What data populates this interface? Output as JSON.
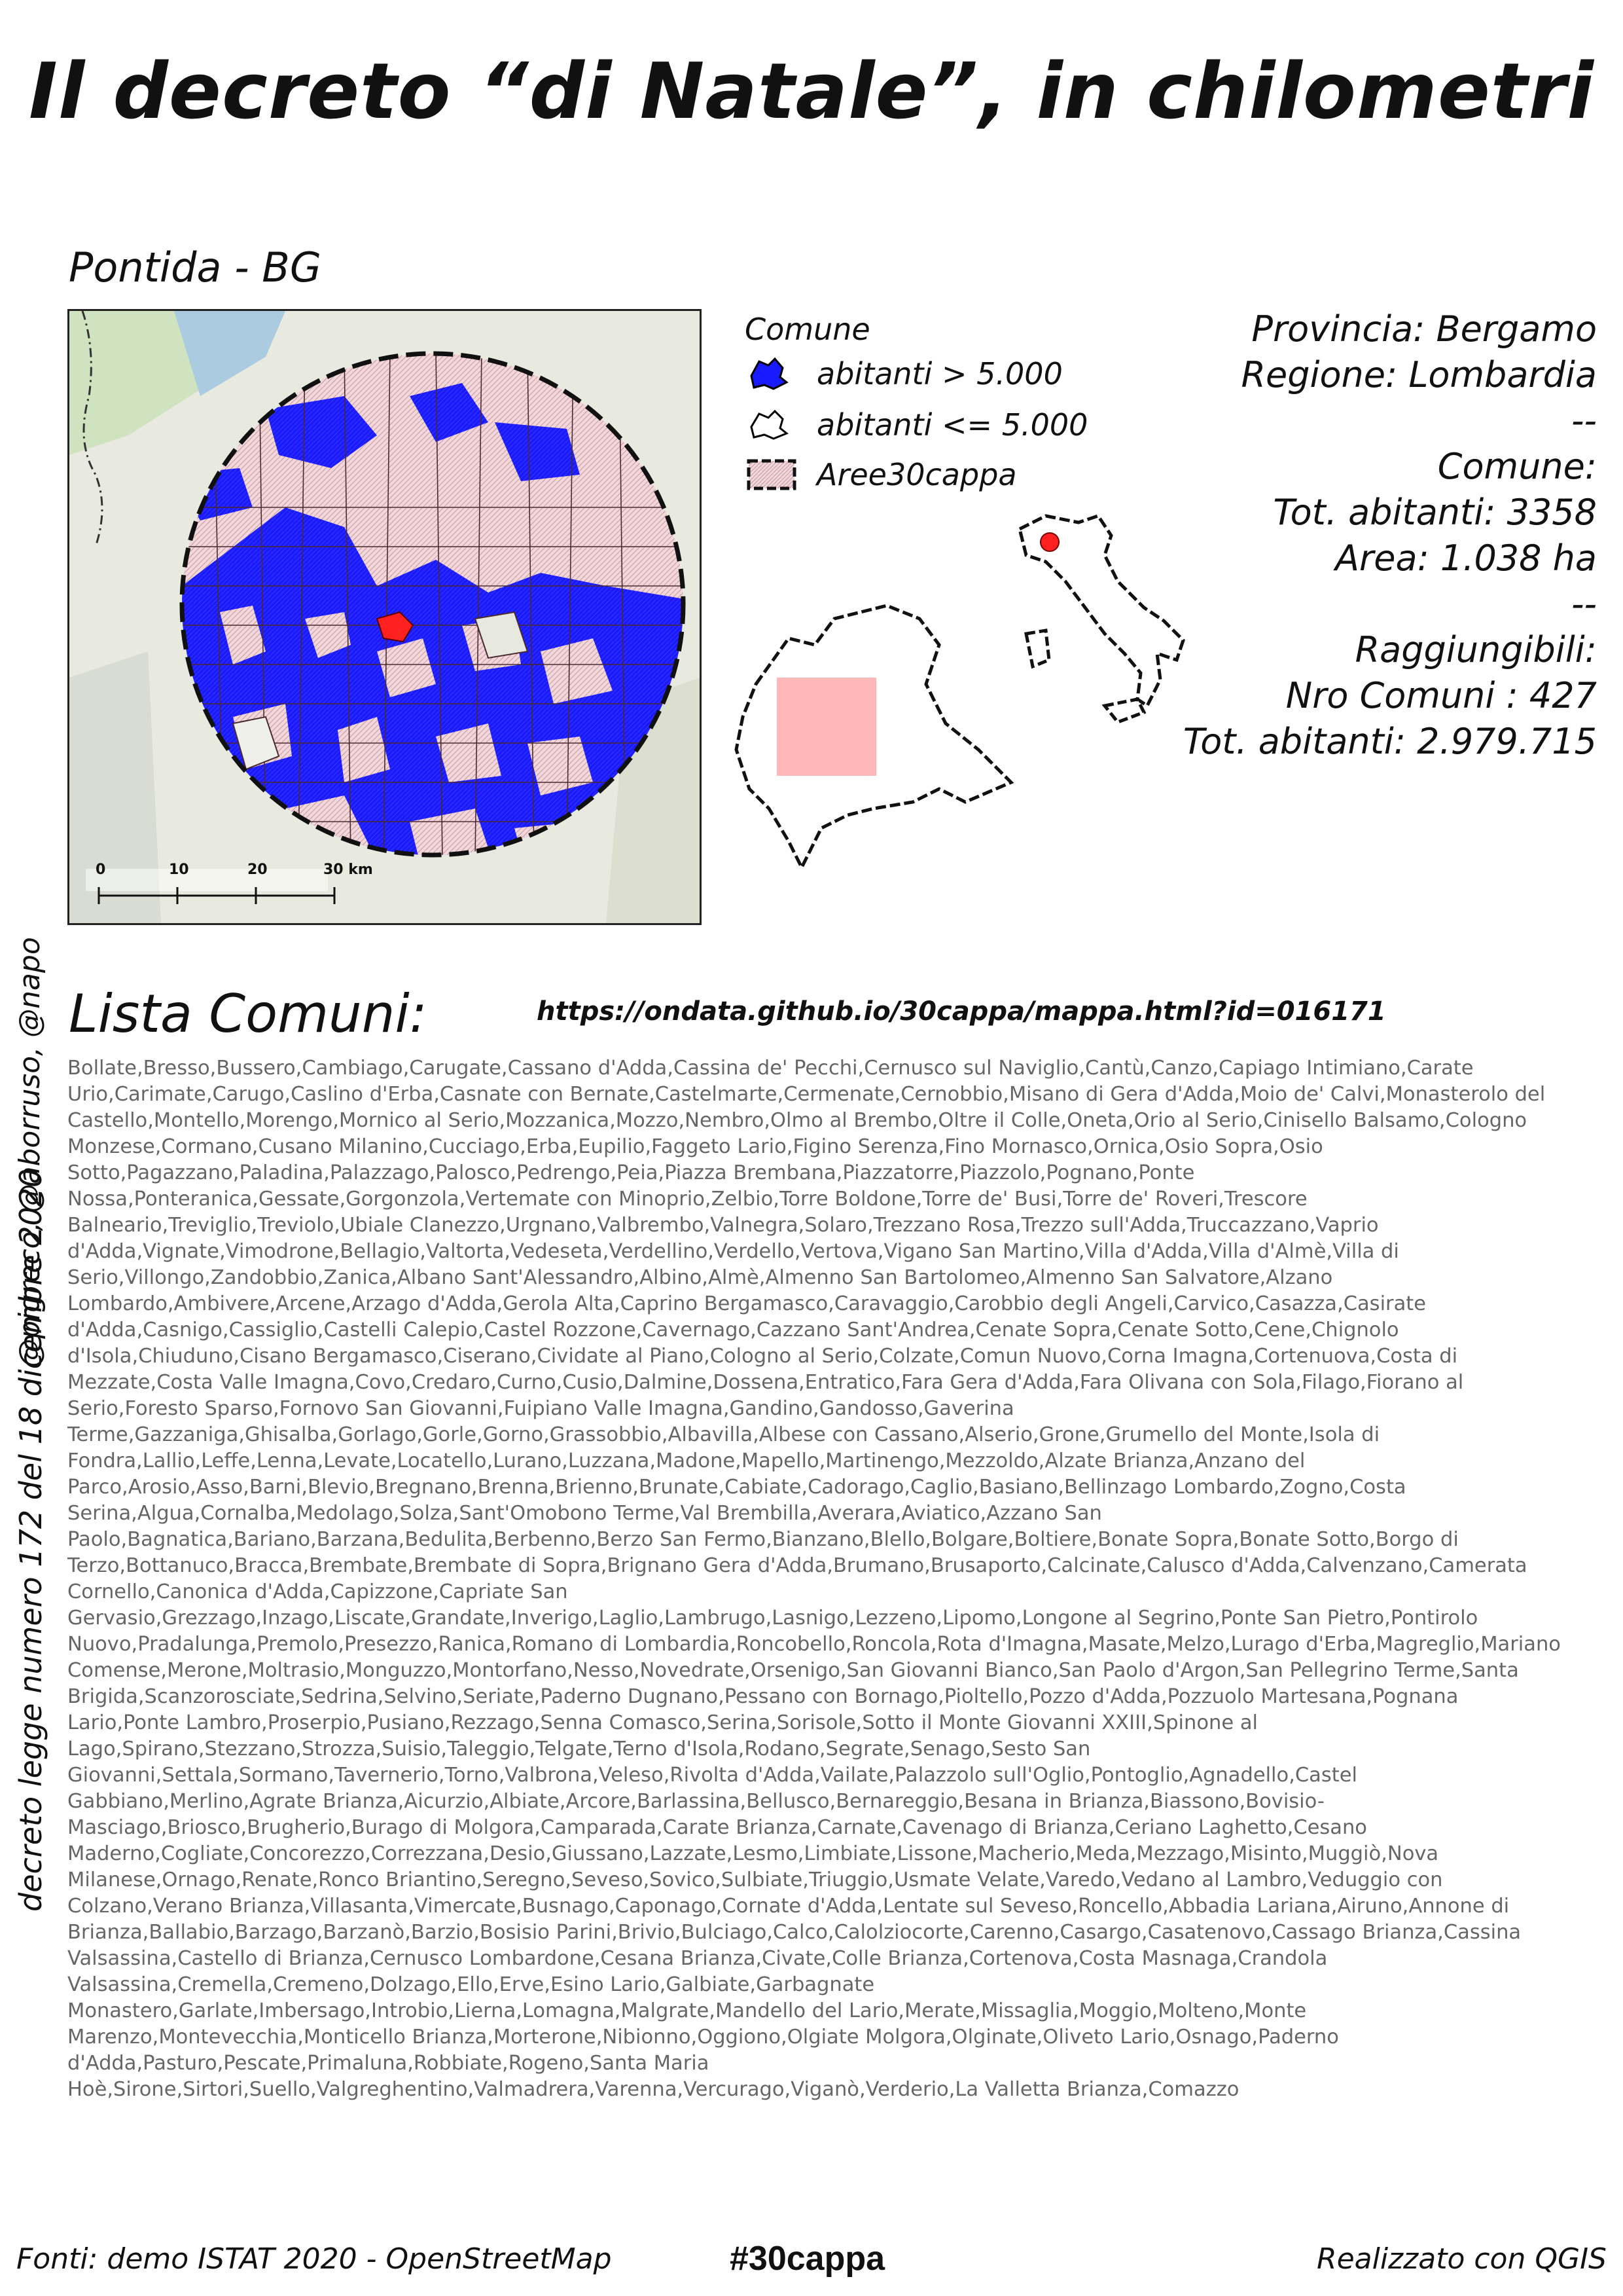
{
  "title": "Il decreto “di Natale”, in chilometri",
  "place_title": "Pontida - BG",
  "credits": "@pigreco, @aborruso, @napo",
  "map": {
    "scale_labels": [
      "0",
      "10",
      "20",
      "30 km"
    ],
    "colors": {
      "large_comune": "#1a1aff",
      "small_comune": "#f1d3d6",
      "selected_comune": "#ff2020",
      "buffer_fill": "#ffb6b9",
      "region_box": "#ffb8b9"
    }
  },
  "legend": {
    "title": "Comune",
    "items": [
      {
        "label": "abitanti > 5.000"
      },
      {
        "label": "abitanti <= 5.000"
      },
      {
        "label": "Aree30cappa"
      }
    ]
  },
  "info": {
    "provincia": "Provincia: Bergamo",
    "regione": "Regione: Lombardia",
    "sep1": "--",
    "comune_label": "Comune:",
    "tot_abitanti": "Tot. abitanti: 3358",
    "area": "Area: 1.038 ha",
    "sep2": "--",
    "raggiungibili_label": "Raggiungibili:",
    "nro_comuni": "Nro Comuni : 427",
    "tot_abitanti_raggiungibili": "Tot. abitanti: 2.979.715"
  },
  "list_title": "Lista Comuni:",
  "url": "https://ondata.github.io/30cappa/mappa.html?id=016171",
  "law": "decreto legge numero 172 del 18 dicembre 2020",
  "comuni_text": "Bollate,Bresso,Bussero,Cambiago,Carugate,Cassano d'Adda,Cassina de' Pecchi,Cernusco sul Naviglio,Cantù,Canzo,Capiago Intimiano,Carate Urio,Carimate,Carugo,Caslino d'Erba,Casnate con Bernate,Castelmarte,Cermenate,Cernobbio,Misano di Gera d'Adda,Moio de' Calvi,Monasterolo del Castello,Montello,Morengo,Mornico al Serio,Mozzanica,Mozzo,Nembro,Olmo al Brembo,Oltre il Colle,Oneta,Orio al Serio,Cinisello Balsamo,Cologno Monzese,Cormano,Cusano Milanino,Cucciago,Erba,Eupilio,Faggeto Lario,Figino Serenza,Fino Mornasco,Ornica,Osio Sopra,Osio Sotto,Pagazzano,Paladina,Palazzago,Palosco,Pedrengo,Peia,Piazza Brembana,Piazzatorre,Piazzolo,Pognano,Ponte Nossa,Ponteranica,Gessate,Gorgonzola,Vertemate con Minoprio,Zelbio,Torre Boldone,Torre de' Busi,Torre de' Roveri,Trescore Balneario,Treviglio,Treviolo,Ubiale Clanezzo,Urgnano,Valbrembo,Valnegra,Solaro,Trezzano Rosa,Trezzo sull'Adda,Truccazzano,Vaprio d'Adda,Vignate,Vimodrone,Bellagio,Valtorta,Vedeseta,Verdellino,Verdello,Vertova,Vigano San Martino,Villa d'Adda,Villa d'Almè,Villa di Serio,Villongo,Zandobbio,Zanica,Albano Sant'Alessandro,Albino,Almè,Almenno San Bartolomeo,Almenno San Salvatore,Alzano Lombardo,Ambivere,Arcene,Arzago d'Adda,Gerola Alta,Caprino Bergamasco,Caravaggio,Carobbio degli Angeli,Carvico,Casazza,Casirate d'Adda,Casnigo,Cassiglio,Castelli Calepio,Castel Rozzone,Cavernago,Cazzano Sant'Andrea,Cenate Sopra,Cenate Sotto,Cene,Chignolo d'Isola,Chiuduno,Cisano Bergamasco,Ciserano,Cividate al Piano,Cologno al Serio,Colzate,Comun Nuovo,Corna Imagna,Cortenuova,Costa di Mezzate,Costa Valle Imagna,Covo,Credaro,Curno,Cusio,Dalmine,Dossena,Entratico,Fara Gera d'Adda,Fara Olivana con Sola,Filago,Fiorano al Serio,Foresto Sparso,Fornovo San Giovanni,Fuipiano Valle Imagna,Gandino,Gandosso,Gaverina Terme,Gazzaniga,Ghisalba,Gorlago,Gorle,Gorno,Grassobbio,Albavilla,Albese con Cassano,Alserio,Grone,Grumello del Monte,Isola di Fondra,Lallio,Leffe,Lenna,Levate,Locatello,Lurano,Luzzana,Madone,Mapello,Martinengo,Mezzoldo,Alzate Brianza,Anzano del Parco,Arosio,Asso,Barni,Blevio,Bregnano,Brenna,Brienno,Brunate,Cabiate,Cadorago,Caglio,Basiano,Bellinzago Lombardo,Zogno,Costa Serina,Algua,Cornalba,Medolago,Solza,Sant'Omobono Terme,Val Brembilla,Averara,Aviatico,Azzano San Paolo,Bagnatica,Bariano,Barzana,Bedulita,Berbenno,Berzo San Fermo,Bianzano,Blello,Bolgare,Boltiere,Bonate Sopra,Bonate Sotto,Borgo di Terzo,Bottanuco,Bracca,Brembate,Brembate di Sopra,Brignano Gera d'Adda,Brumano,Brusaporto,Calcinate,Calusco d'Adda,Calvenzano,Camerata Cornello,Canonica d'Adda,Capizzone,Capriate San Gervasio,Grezzago,Inzago,Liscate,Grandate,Inverigo,Laglio,Lambrugo,Lasnigo,Lezzeno,Lipomo,Longone al Segrino,Ponte San Pietro,Pontirolo Nuovo,Pradalunga,Premolo,Presezzo,Ranica,Romano di Lombardia,Roncobello,Roncola,Rota d'Imagna,Masate,Melzo,Lurago d'Erba,Magreglio,Mariano Comense,Merone,Moltrasio,Monguzzo,Montorfano,Nesso,Novedrate,Orsenigo,San Giovanni Bianco,San Paolo d'Argon,San Pellegrino Terme,Santa Brigida,Scanzorosciate,Sedrina,Selvino,Seriate,Paderno Dugnano,Pessano con Bornago,Pioltello,Pozzo d'Adda,Pozzuolo Martesana,Pognana Lario,Ponte Lambro,Proserpio,Pusiano,Rezzago,Senna Comasco,Serina,Sorisole,Sotto il Monte Giovanni XXIII,Spinone al Lago,Spirano,Stezzano,Strozza,Suisio,Taleggio,Telgate,Terno d'Isola,Rodano,Segrate,Senago,Sesto San Giovanni,Settala,Sormano,Tavernerio,Torno,Valbrona,Veleso,Rivolta d'Adda,Vailate,Palazzolo sull'Oglio,Pontoglio,Agnadello,Castel Gabbiano,Merlino,Agrate Brianza,Aicurzio,Albiate,Arcore,Barlassina,Bellusco,Bernareggio,Besana in Brianza,Biassono,Bovisio-Masciago,Briosco,Brugherio,Burago di Molgora,Camparada,Carate Brianza,Carnate,Cavenago di Brianza,Ceriano Laghetto,Cesano Maderno,Cogliate,Concorezzo,Correzzana,Desio,Giussano,Lazzate,Lesmo,Limbiate,Lissone,Macherio,Meda,Mezzago,Misinto,Muggiò,Nova Milanese,Ornago,Renate,Ronco Briantino,Seregno,Seveso,Sovico,Sulbiate,Triuggio,Usmate Velate,Varedo,Vedano al Lambro,Veduggio con Colzano,Verano Brianza,Villasanta,Vimercate,Busnago,Caponago,Cornate d'Adda,Lentate sul Seveso,Roncello,Abbadia Lariana,Airuno,Annone di Brianza,Ballabio,Barzago,Barzanò,Barzio,Bosisio Parini,Brivio,Bulciago,Calco,Calolziocorte,Carenno,Casargo,Casatenovo,Cassago Brianza,Cassina Valsassina,Castello di Brianza,Cernusco Lombardone,Cesana Brianza,Civate,Colle Brianza,Cortenova,Costa Masnaga,Crandola Valsassina,Cremella,Cremeno,Dolzago,Ello,Erve,Esino Lario,Galbiate,Garbagnate Monastero,Garlate,Imbersago,Introbio,Lierna,Lomagna,Malgrate,Mandello del Lario,Merate,Missaglia,Moggio,Molteno,Monte Marenzo,Montevecchia,Monticello Brianza,Morterone,Nibionno,Oggiono,Olgiate Molgora,Olginate,Oliveto Lario,Osnago,Paderno d'Adda,Pasturo,Pescate,Primaluna,Robbiate,Rogeno,Santa Maria Hoè,Sirone,Sirtori,Suello,Valgreghentino,Valmadrera,Varenna,Vercurago,Viganò,Verderio,La Valletta Brianza,Comazzo",
  "footer": {
    "sources": "Fonti: demo ISTAT 2020 - OpenStreetMap",
    "hashtag": "#30cappa",
    "made_with": "Realizzato con QGIS"
  }
}
